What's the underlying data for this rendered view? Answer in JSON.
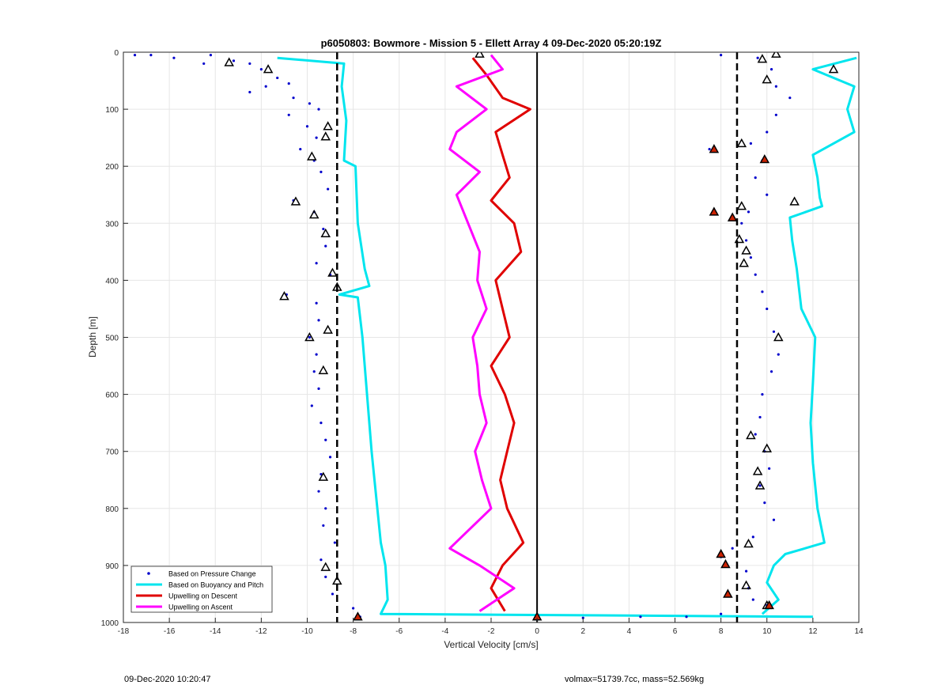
{
  "chart_data": {
    "type": "line",
    "title": "p6050803: Bowmore - Mission 5 - Ellett Array 4 09-Dec-2020 05:20:19Z",
    "xlabel": "Vertical Velocity [cm/s]",
    "ylabel": "Depth [m]",
    "xlim": [
      -18,
      14
    ],
    "ylim": [
      0,
      1000
    ],
    "y_reversed": true,
    "grid": true,
    "x_ticks": [
      -18,
      -16,
      -14,
      -12,
      -10,
      -8,
      -6,
      -4,
      -2,
      0,
      2,
      4,
      6,
      8,
      10,
      12,
      14
    ],
    "y_ticks": [
      0,
      100,
      200,
      300,
      400,
      500,
      600,
      700,
      800,
      900,
      1000
    ],
    "legend_position": "bottom-left",
    "legend": [
      {
        "name": "Based on Pressure Change",
        "style": "dots",
        "color": "#0000cc"
      },
      {
        "name": "Based on Buoyancy and Pitch",
        "style": "line",
        "color": "#00e5ee"
      },
      {
        "name": "Upwelling on Descent",
        "style": "line",
        "color": "#e00000"
      },
      {
        "name": "Upwelling on Ascent",
        "style": "line",
        "color": "#ff00ff"
      }
    ],
    "reference_lines": [
      {
        "x": -8.7,
        "style": "dashed",
        "color": "#000000"
      },
      {
        "x": 8.7,
        "style": "dashed",
        "color": "#000000"
      },
      {
        "x": 0,
        "style": "solid",
        "color": "#000000"
      }
    ],
    "series": [
      {
        "name": "Based on Buoyancy and Pitch",
        "color": "#00e5ee",
        "profile": "descent",
        "points": [
          [
            -11.3,
            10
          ],
          [
            -8.4,
            20
          ],
          [
            -8.5,
            60
          ],
          [
            -8.3,
            120
          ],
          [
            -8.4,
            190
          ],
          [
            -7.9,
            200
          ],
          [
            -7.8,
            300
          ],
          [
            -7.5,
            380
          ],
          [
            -7.3,
            410
          ],
          [
            -8.6,
            425
          ],
          [
            -7.8,
            430
          ],
          [
            -7.6,
            500
          ],
          [
            -7.4,
            600
          ],
          [
            -7.2,
            700
          ],
          [
            -7.0,
            780
          ],
          [
            -6.8,
            860
          ],
          [
            -6.6,
            900
          ],
          [
            -6.5,
            960
          ],
          [
            -6.8,
            985
          ],
          [
            12.0,
            990
          ]
        ]
      },
      {
        "name": "Based on Buoyancy and Pitch",
        "color": "#00e5ee",
        "profile": "ascent",
        "points": [
          [
            9.8,
            985
          ],
          [
            10.5,
            960
          ],
          [
            10.0,
            930
          ],
          [
            10.3,
            900
          ],
          [
            10.8,
            880
          ],
          [
            12.5,
            860
          ],
          [
            12.2,
            800
          ],
          [
            12.0,
            720
          ],
          [
            11.9,
            650
          ],
          [
            12.0,
            580
          ],
          [
            12.1,
            500
          ],
          [
            11.5,
            450
          ],
          [
            11.3,
            380
          ],
          [
            11.1,
            330
          ],
          [
            11.0,
            290
          ],
          [
            12.4,
            270
          ],
          [
            12.3,
            255
          ],
          [
            12.2,
            220
          ],
          [
            12.0,
            180
          ],
          [
            13.8,
            140
          ],
          [
            13.5,
            100
          ],
          [
            13.8,
            60
          ],
          [
            12.0,
            30
          ],
          [
            13.9,
            10
          ]
        ]
      },
      {
        "name": "Upwelling on Descent",
        "color": "#e00000",
        "points": [
          [
            -2.8,
            10
          ],
          [
            -2.2,
            40
          ],
          [
            -1.5,
            80
          ],
          [
            -0.3,
            100
          ],
          [
            -1.8,
            140
          ],
          [
            -1.5,
            180
          ],
          [
            -1.2,
            220
          ],
          [
            -2.0,
            260
          ],
          [
            -1.0,
            300
          ],
          [
            -0.7,
            350
          ],
          [
            -1.8,
            400
          ],
          [
            -1.5,
            450
          ],
          [
            -1.2,
            500
          ],
          [
            -2.0,
            550
          ],
          [
            -1.4,
            600
          ],
          [
            -1.0,
            650
          ],
          [
            -1.3,
            700
          ],
          [
            -1.6,
            750
          ],
          [
            -1.3,
            800
          ],
          [
            -0.6,
            860
          ],
          [
            -1.5,
            900
          ],
          [
            -2.0,
            940
          ],
          [
            -1.4,
            980
          ]
        ]
      },
      {
        "name": "Upwelling on Ascent",
        "color": "#ff00ff",
        "points": [
          [
            -2.0,
            5
          ],
          [
            -1.5,
            30
          ],
          [
            -3.5,
            60
          ],
          [
            -2.2,
            100
          ],
          [
            -3.5,
            140
          ],
          [
            -3.8,
            170
          ],
          [
            -2.5,
            210
          ],
          [
            -3.5,
            250
          ],
          [
            -3.0,
            300
          ],
          [
            -2.5,
            350
          ],
          [
            -2.6,
            400
          ],
          [
            -2.2,
            450
          ],
          [
            -2.8,
            500
          ],
          [
            -2.6,
            550
          ],
          [
            -2.5,
            600
          ],
          [
            -2.2,
            650
          ],
          [
            -2.7,
            700
          ],
          [
            -2.4,
            750
          ],
          [
            -2.0,
            800
          ],
          [
            -3.8,
            870
          ],
          [
            -2.5,
            900
          ],
          [
            -1.0,
            940
          ],
          [
            -2.5,
            980
          ]
        ]
      }
    ],
    "scatter_series": [
      {
        "name": "Based on Pressure Change",
        "color": "#0000cc",
        "points": [
          [
            -17.5,
            5
          ],
          [
            -16.8,
            5
          ],
          [
            -15.8,
            10
          ],
          [
            -14.2,
            5
          ],
          [
            -14.5,
            20
          ],
          [
            -13.2,
            15
          ],
          [
            -12.5,
            20
          ],
          [
            -12.0,
            30
          ],
          [
            -11.3,
            45
          ],
          [
            -10.8,
            55
          ],
          [
            -11.8,
            60
          ],
          [
            -12.5,
            70
          ],
          [
            -10.6,
            80
          ],
          [
            -9.9,
            90
          ],
          [
            -9.5,
            100
          ],
          [
            -10.8,
            110
          ],
          [
            -10.0,
            130
          ],
          [
            -9.6,
            150
          ],
          [
            -10.3,
            170
          ],
          [
            -9.7,
            190
          ],
          [
            -9.4,
            210
          ],
          [
            -9.1,
            240
          ],
          [
            -10.6,
            260
          ],
          [
            -9.7,
            280
          ],
          [
            -9.3,
            310
          ],
          [
            -9.2,
            340
          ],
          [
            -9.6,
            370
          ],
          [
            -9.0,
            390
          ],
          [
            -10.9,
            425
          ],
          [
            -9.6,
            440
          ],
          [
            -9.5,
            470
          ],
          [
            -9.9,
            500
          ],
          [
            -9.6,
            530
          ],
          [
            -9.7,
            560
          ],
          [
            -9.5,
            590
          ],
          [
            -9.8,
            620
          ],
          [
            -9.4,
            650
          ],
          [
            -9.2,
            680
          ],
          [
            -9.0,
            710
          ],
          [
            -9.4,
            740
          ],
          [
            -9.5,
            770
          ],
          [
            -9.2,
            800
          ],
          [
            -9.3,
            830
          ],
          [
            -8.8,
            860
          ],
          [
            -9.4,
            890
          ],
          [
            -9.2,
            920
          ],
          [
            -8.9,
            950
          ],
          [
            -8.0,
            975
          ],
          [
            -7.7,
            990
          ],
          [
            8.0,
            5
          ],
          [
            9.6,
            10
          ],
          [
            10.2,
            30
          ],
          [
            10.4,
            60
          ],
          [
            11.0,
            80
          ],
          [
            10.4,
            110
          ],
          [
            10.0,
            140
          ],
          [
            9.3,
            160
          ],
          [
            7.5,
            170
          ],
          [
            9.8,
            190
          ],
          [
            9.5,
            220
          ],
          [
            10.0,
            250
          ],
          [
            9.2,
            280
          ],
          [
            8.9,
            300
          ],
          [
            9.1,
            330
          ],
          [
            9.3,
            360
          ],
          [
            9.5,
            390
          ],
          [
            9.8,
            420
          ],
          [
            10.0,
            450
          ],
          [
            10.3,
            490
          ],
          [
            10.5,
            530
          ],
          [
            10.2,
            560
          ],
          [
            9.8,
            600
          ],
          [
            9.7,
            640
          ],
          [
            9.5,
            670
          ],
          [
            9.9,
            700
          ],
          [
            10.1,
            730
          ],
          [
            9.7,
            760
          ],
          [
            9.9,
            790
          ],
          [
            10.3,
            820
          ],
          [
            9.4,
            850
          ],
          [
            8.5,
            870
          ],
          [
            8.0,
            885
          ],
          [
            9.1,
            910
          ],
          [
            9.2,
            940
          ],
          [
            9.4,
            960
          ],
          [
            10.0,
            970
          ],
          [
            8.0,
            985
          ],
          [
            6.5,
            990
          ],
          [
            4.5,
            990
          ],
          [
            2.0,
            992
          ]
        ]
      }
    ],
    "markers": [
      {
        "type": "triangle",
        "color": "#000000",
        "fill": "none",
        "points": [
          [
            -13.4,
            18
          ],
          [
            -11.7,
            30
          ],
          [
            -9.1,
            130
          ],
          [
            -9.2,
            148
          ],
          [
            -9.8,
            183
          ],
          [
            -10.5,
            262
          ],
          [
            -9.7,
            285
          ],
          [
            -9.2,
            318
          ],
          [
            -8.9,
            387
          ],
          [
            -8.7,
            412
          ],
          [
            -11.0,
            428
          ],
          [
            -9.1,
            487
          ],
          [
            -9.9,
            500
          ],
          [
            -9.3,
            558
          ],
          [
            -9.3,
            745
          ],
          [
            -9.2,
            903
          ],
          [
            -8.7,
            927
          ],
          [
            -2.5,
            3
          ],
          [
            10.4,
            3
          ],
          [
            9.8,
            12
          ],
          [
            12.9,
            30
          ],
          [
            10.0,
            48
          ],
          [
            8.9,
            160
          ],
          [
            11.2,
            262
          ],
          [
            8.9,
            270
          ],
          [
            8.8,
            328
          ],
          [
            9.1,
            348
          ],
          [
            9.0,
            370
          ],
          [
            10.5,
            500
          ],
          [
            9.3,
            672
          ],
          [
            10.0,
            695
          ],
          [
            9.6,
            735
          ],
          [
            9.7,
            760
          ],
          [
            9.2,
            862
          ],
          [
            9.1,
            935
          ],
          [
            10.0,
            970
          ]
        ]
      },
      {
        "type": "triangle",
        "color": "#000000",
        "fill": "#cc2200",
        "points": [
          [
            -7.8,
            990
          ],
          [
            0.0,
            990
          ],
          [
            7.7,
            170
          ],
          [
            7.7,
            280
          ],
          [
            8.5,
            290
          ],
          [
            8.0,
            880
          ],
          [
            8.2,
            898
          ],
          [
            8.3,
            950
          ],
          [
            10.1,
            970
          ],
          [
            9.9,
            188
          ]
        ]
      }
    ]
  },
  "footer": {
    "left_timestamp": "09-Dec-2020 10:20:47",
    "right_info": "volmax=51739.7cc, mass=52.569kg"
  }
}
